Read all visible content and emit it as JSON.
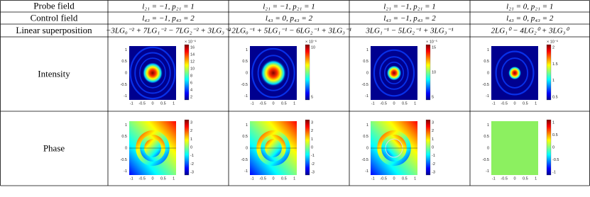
{
  "table": {
    "row_labels": [
      "Probe field",
      "Control field",
      "Linear superposition",
      "Intensity",
      "Phase"
    ],
    "rows": [
      [
        "l₂₁ = −1, p₂₁ = 1",
        "l₂₁ = −1, p₂₁ = 1",
        "l₂₁ = −1, p₂₁ = 1",
        "l₂₁ = 0, p₂₁ = 1"
      ],
      [
        "l₄₃ = −1, p₄₃ = 2",
        "l₄₃ = 0, p₄₃ = 2",
        "l₄₃ = −1, p₄₃ = 2",
        "l₄₃ = 0, p₄₃ = 2"
      ],
      [
        "−3LG₀⁻² + 7LG₁⁻² − 7LG₂⁻² + 3LG₃⁻²",
        "−2LG₀⁻¹ + 5LG₁⁻¹ − 6LG₂⁻¹ + 3LG₃⁻¹",
        "3LG₁⁻¹ − 5LG₂⁻¹ + 3LG₃⁻¹",
        "2LG₁⁰ − 4LG₂⁰ + 3LG₃⁰"
      ]
    ],
    "plot_axis": {
      "xticks": [
        -1,
        -0.5,
        0,
        0.5,
        1
      ],
      "yticks": [
        1,
        0.5,
        0,
        -0.5,
        -1
      ]
    },
    "intensity_colorbars": [
      {
        "exponent": "× 10⁻⁶",
        "ticks": [
          16,
          14,
          12,
          10,
          8,
          6,
          4,
          2
        ]
      },
      {
        "exponent": "× 10⁻⁶",
        "ticks": [
          10,
          5
        ]
      },
      {
        "exponent": "× 10⁻⁵",
        "ticks": [
          15,
          10,
          5
        ]
      },
      {
        "exponent": "× 10⁻⁶",
        "ticks": [
          2,
          1.5,
          1,
          0.5
        ]
      }
    ],
    "phase_colorbars": [
      {
        "ticks": [
          3,
          2,
          1,
          0,
          -1,
          -2,
          -3
        ]
      },
      {
        "ticks": [
          3,
          2,
          1,
          0,
          -1,
          -2,
          -3
        ]
      },
      {
        "ticks": [
          3,
          2,
          1,
          0,
          -1,
          -2,
          -3
        ]
      },
      {
        "ticks": [
          1,
          0.5,
          0,
          -0.5,
          -1
        ]
      }
    ]
  }
}
